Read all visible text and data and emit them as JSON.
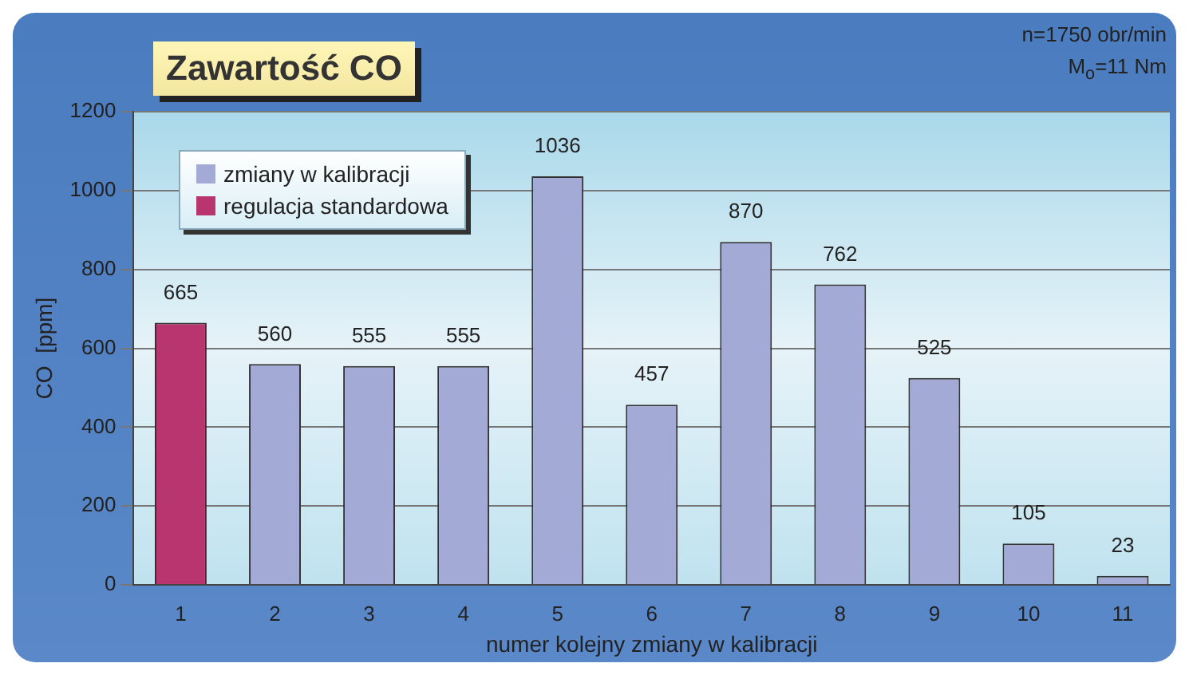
{
  "chart_data": {
    "type": "bar",
    "title": "Zawartość CO",
    "xlabel": "numer kolejny zmiany w kalibracji",
    "ylabel": "CO  [ppm]",
    "categories": [
      "1",
      "2",
      "3",
      "4",
      "5",
      "6",
      "7",
      "8",
      "9",
      "10",
      "11"
    ],
    "series": [
      {
        "name": "zmiany w kalibracji",
        "color": "#a3aad6",
        "values": [
          null,
          560,
          555,
          555,
          1036,
          457,
          870,
          762,
          525,
          105,
          23
        ]
      },
      {
        "name": "regulacja standardowa",
        "color": "#b8356f",
        "values": [
          665,
          null,
          null,
          null,
          null,
          null,
          null,
          null,
          null,
          null,
          null
        ]
      }
    ],
    "ylim": [
      0,
      1200
    ],
    "yticks": [
      0,
      200,
      400,
      600,
      800,
      1000,
      1200
    ],
    "grid": "y",
    "legend": "top left",
    "data_labels": true,
    "annotations": [
      "n=1750 obr/min",
      "M$_{o}$=11 Nm"
    ]
  }
}
